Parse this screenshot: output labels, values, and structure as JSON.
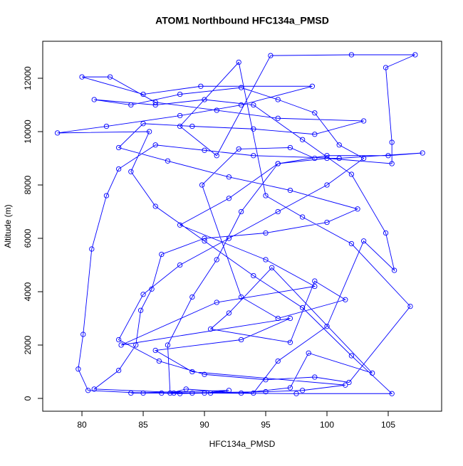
{
  "chart_data": {
    "type": "line",
    "markers": true,
    "title": "ATOM1 Northbound HFC134a_PMSD",
    "x_label": "HFC134a_PMSD",
    "y_label": "Altitude (m)",
    "xlim": [
      76.8,
      109.36
    ],
    "ylim": [
      -480,
      13387
    ],
    "xticks": [
      80,
      85,
      90,
      95,
      100,
      105
    ],
    "yticks": [
      0,
      2000,
      4000,
      6000,
      8000,
      10000,
      12000
    ],
    "series": [
      {
        "color": "#0000ff",
        "x": [
          86.5,
          88,
          90,
          92,
          84,
          87.5,
          95,
          98,
          101.5,
          89,
          86,
          93,
          97,
          83.2,
          91,
          99,
          95,
          88,
          92,
          96,
          100,
          105,
          107.8,
          101,
          94,
          90,
          86,
          83,
          82,
          80.8,
          80.1,
          79.7,
          80.5,
          85,
          90.5,
          97.5,
          105.3,
          102,
          98,
          94,
          90,
          86,
          84,
          85.5,
          78,
          82,
          88,
          93,
          98.8,
          89.7,
          85,
          80,
          82.3,
          86,
          91,
          96,
          103,
          99,
          94,
          89,
          85,
          83,
          87,
          92,
          97,
          102.5,
          100,
          95,
          90,
          86.5,
          85.7,
          84.8,
          84.4,
          83,
          81,
          89,
          94,
          96,
          100,
          103,
          105.5,
          104.8,
          102,
          98,
          94,
          90,
          86,
          81,
          84,
          88,
          93,
          96,
          99,
          101,
          103,
          100,
          96,
          92,
          88,
          85,
          83,
          86.3,
          90,
          95,
          99,
          101.8,
          106.8,
          102,
          98,
          95,
          92.8,
          88,
          91,
          95.4,
          102,
          107.2,
          104.8,
          105.3,
          105.3,
          100,
          96,
          93,
          91,
          89,
          87,
          87.2,
          88.5,
          93,
          97,
          98.5,
          103.7,
          95.5,
          92,
          90.5,
          97,
          99,
          101.5,
          96,
          93,
          89.8,
          92.8,
          97,
          99
        ],
        "values": [
          200,
          180,
          200,
          300,
          200,
          200,
          250,
          300,
          500,
          1000,
          1800,
          2200,
          3000,
          2000,
          3600,
          4200,
          5200,
          6500,
          7500,
          8800,
          9100,
          9100,
          9200,
          9000,
          9100,
          9300,
          9500,
          8600,
          7600,
          5600,
          2400,
          1100,
          300,
          200,
          200,
          180,
          180,
          1600,
          3400,
          4600,
          5900,
          7200,
          8500,
          10000,
          9950,
          10200,
          10600,
          11000,
          11700,
          11700,
          11400,
          12050,
          12050,
          11100,
          10800,
          10500,
          10400,
          9900,
          10100,
          10200,
          10300,
          9400,
          8900,
          8300,
          7800,
          7100,
          6600,
          6200,
          6000,
          5400,
          4100,
          3300,
          2000,
          1050,
          350,
          200,
          200,
          1400,
          2700,
          5900,
          4800,
          6200,
          8400,
          9700,
          11000,
          11200,
          11000,
          11200,
          11000,
          11400,
          11650,
          11200,
          10700,
          9500,
          9000,
          8000,
          7000,
          6000,
          5000,
          3900,
          2200,
          1400,
          900,
          700,
          800,
          600,
          3450,
          5800,
          6800,
          7600,
          12600,
          10200,
          9100,
          12850,
          12880,
          12880,
          12400,
          9600,
          8800,
          9000,
          8800,
          7000,
          5200,
          3800,
          2000,
          200,
          350,
          200,
          400,
          1700,
          950,
          4900,
          3200,
          2600,
          2100,
          4400,
          3700,
          3000,
          3800,
          8000,
          9350,
          9400,
          9000
        ]
      }
    ]
  }
}
